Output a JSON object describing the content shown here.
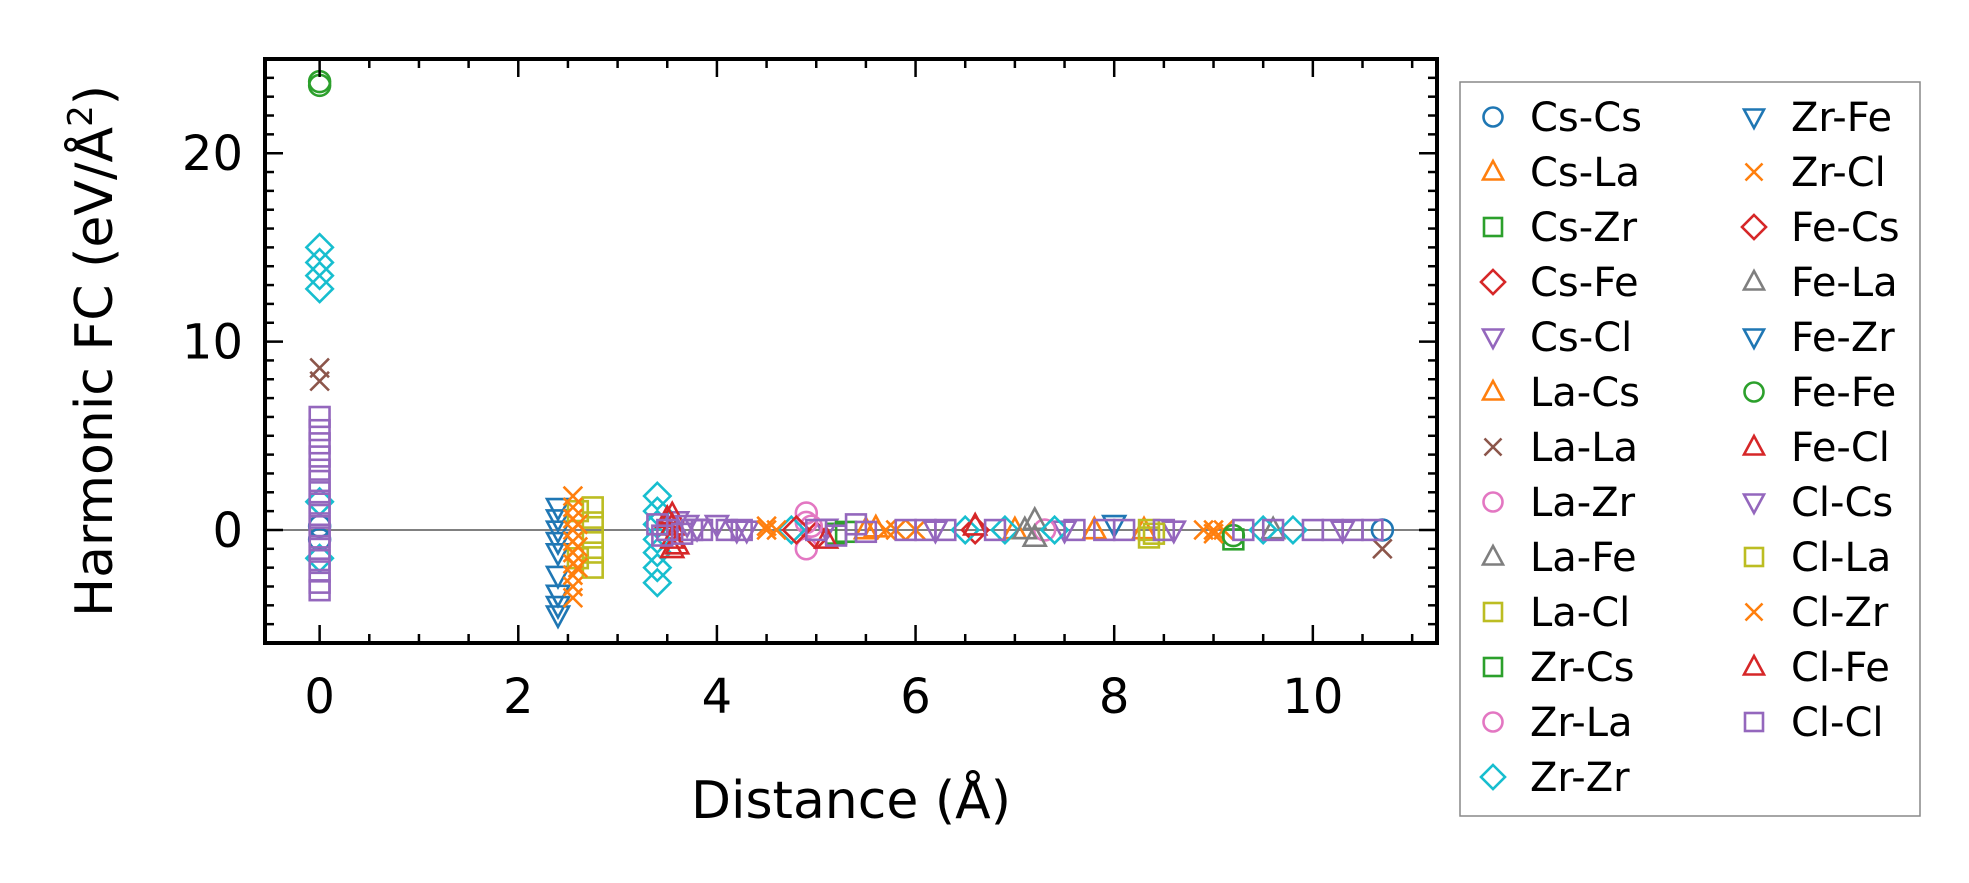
{
  "chart_data": {
    "type": "scatter",
    "title": "",
    "xlabel": "Distance (Å)",
    "ylabel": "Harmonic FC (eV/Å²)",
    "ylabel_base": "Harmonic FC (eV/Å",
    "ylabel_sup": "2",
    "ylabel_close": ")",
    "xlim": [
      -0.55,
      11.25
    ],
    "ylim": [
      -6,
      25
    ],
    "xticks": [
      0,
      2,
      4,
      6,
      8,
      10
    ],
    "xtick_labels": [
      "0",
      "2",
      "4",
      "6",
      "8",
      "10"
    ],
    "yticks": [
      0,
      10,
      20
    ],
    "ytick_labels": [
      "0",
      "10",
      "20"
    ],
    "zero_line": 0,
    "legend_position": "outside-right",
    "colors": {
      "blue": "#1f77b4",
      "orange": "#ff7f0e",
      "green": "#2ca02c",
      "red": "#d62728",
      "purple": "#9467bd",
      "brown": "#8c564b",
      "pink": "#e377c2",
      "gray": "#7f7f7f",
      "olive": "#bcbd22",
      "cyan": "#17becf"
    },
    "series": [
      {
        "name": "Cs-Cs",
        "marker": "circle",
        "color": "#1f77b4",
        "points": [
          [
            0,
            0.2
          ],
          [
            0,
            -0.5
          ],
          [
            10.7,
            0.0
          ]
        ]
      },
      {
        "name": "Cs-La",
        "marker": "triangle-up",
        "color": "#ff7f0e",
        "points": [
          [
            5.6,
            0.1
          ],
          [
            7.0,
            0.0
          ],
          [
            8.3,
            0.0
          ]
        ]
      },
      {
        "name": "Cs-Zr",
        "marker": "square",
        "color": "#2ca02c",
        "points": [
          [
            5.2,
            -0.2
          ],
          [
            9.2,
            -0.5
          ]
        ]
      },
      {
        "name": "Cs-Fe",
        "marker": "diamond",
        "color": "#d62728",
        "points": [
          [
            5.0,
            -0.3
          ],
          [
            6.6,
            0.0
          ]
        ]
      },
      {
        "name": "Cs-Cl",
        "marker": "triangle-down",
        "color": "#9467bd",
        "points": [
          [
            3.6,
            0.5
          ],
          [
            3.8,
            0.1
          ],
          [
            4.0,
            0.3
          ],
          [
            4.3,
            0.0
          ],
          [
            5.1,
            0.1
          ],
          [
            7.5,
            0.0
          ],
          [
            8.6,
            0.0
          ]
        ]
      },
      {
        "name": "La-Cs",
        "marker": "triangle-up",
        "color": "#ff7f0e",
        "points": [
          [
            5.5,
            0.0
          ],
          [
            7.8,
            0.0
          ]
        ]
      },
      {
        "name": "La-La",
        "marker": "x",
        "color": "#8c564b",
        "points": [
          [
            0,
            8.6
          ],
          [
            0,
            7.9
          ],
          [
            10.7,
            -1.0
          ]
        ]
      },
      {
        "name": "La-Zr",
        "marker": "circle",
        "color": "#e377c2",
        "points": [
          [
            4.9,
            0.9
          ],
          [
            4.9,
            -1.0
          ],
          [
            4.95,
            0.2
          ],
          [
            7.3,
            0.0
          ]
        ]
      },
      {
        "name": "La-Fe",
        "marker": "triangle-up",
        "color": "#7f7f7f",
        "points": [
          [
            7.2,
            0.5
          ],
          [
            7.2,
            -0.4
          ],
          [
            9.6,
            0.0
          ]
        ]
      },
      {
        "name": "La-Cl",
        "marker": "square",
        "color": "#bcbd22",
        "points": [
          [
            2.75,
            1.2
          ],
          [
            2.75,
            0.4
          ],
          [
            2.75,
            -0.4
          ],
          [
            2.75,
            -1.2
          ],
          [
            2.75,
            -2.0
          ],
          [
            8.35,
            0.0
          ],
          [
            8.35,
            -0.4
          ]
        ]
      },
      {
        "name": "Zr-Cs",
        "marker": "square",
        "color": "#2ca02c",
        "points": [
          [
            5.3,
            -0.1
          ]
        ]
      },
      {
        "name": "Zr-La",
        "marker": "circle",
        "color": "#e377c2",
        "points": [
          [
            4.9,
            0.4
          ]
        ]
      },
      {
        "name": "Zr-Zr",
        "marker": "diamond",
        "color": "#17becf",
        "points": [
          [
            0,
            15.0
          ],
          [
            0,
            14.2
          ],
          [
            0,
            13.5
          ],
          [
            0,
            12.8
          ],
          [
            0,
            1.5
          ],
          [
            0,
            -1.5
          ],
          [
            3.4,
            1.8
          ],
          [
            3.4,
            1.0
          ],
          [
            3.4,
            0.3
          ],
          [
            3.4,
            -0.5
          ],
          [
            3.4,
            -1.2
          ],
          [
            3.4,
            -2.0
          ],
          [
            3.4,
            -2.8
          ],
          [
            4.75,
            0.0
          ],
          [
            6.5,
            0.0
          ],
          [
            6.9,
            0.0
          ],
          [
            7.4,
            0.0
          ],
          [
            9.5,
            0.0
          ],
          [
            9.8,
            0.0
          ]
        ]
      },
      {
        "name": "Zr-Fe",
        "marker": "triangle-down",
        "color": "#1f77b4",
        "points": [
          [
            8.0,
            0.3
          ]
        ]
      },
      {
        "name": "Zr-Cl",
        "marker": "x",
        "color": "#ff7f0e",
        "points": [
          [
            4.6,
            0.0
          ],
          [
            4.5,
            0.2
          ],
          [
            5.8,
            0.0
          ],
          [
            6.0,
            0.0
          ],
          [
            8.9,
            0.0
          ],
          [
            9.0,
            0.0
          ],
          [
            9.1,
            0.0
          ]
        ]
      },
      {
        "name": "Fe-Cs",
        "marker": "diamond",
        "color": "#d62728",
        "points": [
          [
            4.8,
            0.0
          ]
        ]
      },
      {
        "name": "Fe-La",
        "marker": "triangle-up",
        "color": "#7f7f7f",
        "points": [
          [
            7.1,
            0.0
          ]
        ]
      },
      {
        "name": "Fe-Zr",
        "marker": "triangle-down",
        "color": "#1f77b4",
        "points": [
          [
            2.4,
            1.2
          ],
          [
            2.4,
            0.6
          ],
          [
            2.4,
            0.0
          ],
          [
            2.4,
            -0.6
          ],
          [
            2.4,
            -1.2
          ],
          [
            2.4,
            -2.4
          ],
          [
            2.4,
            -3.4
          ],
          [
            2.4,
            -4.0
          ],
          [
            2.4,
            -4.5
          ]
        ]
      },
      {
        "name": "Fe-Fe",
        "marker": "circle",
        "color": "#2ca02c",
        "points": [
          [
            0,
            23.8
          ],
          [
            0,
            23.6
          ],
          [
            9.2,
            -0.3
          ]
        ]
      },
      {
        "name": "Fe-Cl",
        "marker": "triangle-up",
        "color": "#d62728",
        "points": [
          [
            3.55,
            0.8
          ],
          [
            3.55,
            0.2
          ],
          [
            3.55,
            -0.5
          ],
          [
            3.55,
            -1.0
          ],
          [
            6.6,
            0.2
          ]
        ]
      },
      {
        "name": "Cl-Cs",
        "marker": "triangle-down",
        "color": "#9467bd",
        "points": [
          [
            3.7,
            0.3
          ],
          [
            4.2,
            0.0
          ],
          [
            6.2,
            0.0
          ],
          [
            10.3,
            0.0
          ]
        ]
      },
      {
        "name": "Cl-La",
        "marker": "square",
        "color": "#bcbd22",
        "points": [
          [
            2.6,
            1.0
          ],
          [
            2.6,
            -1.5
          ],
          [
            8.4,
            -0.2
          ]
        ]
      },
      {
        "name": "Cl-Zr",
        "marker": "x",
        "color": "#ff7f0e",
        "points": [
          [
            2.55,
            1.8
          ],
          [
            2.55,
            1.2
          ],
          [
            2.55,
            0.6
          ],
          [
            2.55,
            0.0
          ],
          [
            2.55,
            -0.6
          ],
          [
            2.55,
            -1.2
          ],
          [
            2.55,
            -1.8
          ],
          [
            2.55,
            -2.4
          ],
          [
            2.55,
            -3.0
          ],
          [
            2.55,
            -3.6
          ],
          [
            2.6,
            0.3
          ],
          [
            2.6,
            -0.9
          ],
          [
            2.6,
            -2.0
          ],
          [
            4.5,
            0.0
          ],
          [
            5.7,
            0.0
          ],
          [
            9.0,
            -0.2
          ]
        ]
      },
      {
        "name": "Cl-Fe",
        "marker": "triangle-up",
        "color": "#d62728",
        "points": [
          [
            3.5,
            0.6
          ],
          [
            3.6,
            -0.8
          ],
          [
            5.1,
            -0.5
          ]
        ]
      },
      {
        "name": "Cl-Cl",
        "marker": "square",
        "color": "#9467bd",
        "points": [
          [
            0,
            6.0
          ],
          [
            0,
            5.3
          ],
          [
            0,
            4.6
          ],
          [
            0,
            3.9
          ],
          [
            0,
            3.2
          ],
          [
            0,
            2.6
          ],
          [
            0,
            2.0
          ],
          [
            0,
            1.4
          ],
          [
            0,
            0.8
          ],
          [
            0,
            0.2
          ],
          [
            0,
            -0.4
          ],
          [
            0,
            -1.0
          ],
          [
            0,
            -1.6
          ],
          [
            0,
            -2.2
          ],
          [
            0,
            -2.8
          ],
          [
            0,
            -3.2
          ],
          [
            3.4,
            0.3
          ],
          [
            3.45,
            -0.3
          ],
          [
            3.5,
            0.0
          ],
          [
            3.65,
            -0.2
          ],
          [
            3.75,
            0.0
          ],
          [
            3.85,
            0.0
          ],
          [
            4.1,
            0.0
          ],
          [
            4.25,
            0.0
          ],
          [
            5.0,
            0.0
          ],
          [
            5.2,
            -0.3
          ],
          [
            5.4,
            0.3
          ],
          [
            5.5,
            -0.1
          ],
          [
            5.9,
            0.0
          ],
          [
            6.1,
            0.0
          ],
          [
            6.3,
            0.0
          ],
          [
            6.8,
            0.0
          ],
          [
            7.6,
            0.0
          ],
          [
            7.9,
            0.0
          ],
          [
            8.1,
            0.0
          ],
          [
            8.5,
            0.0
          ],
          [
            9.3,
            0.0
          ],
          [
            9.6,
            0.0
          ],
          [
            10.0,
            0.0
          ],
          [
            10.2,
            0.0
          ],
          [
            10.4,
            0.0
          ],
          [
            10.6,
            0.0
          ]
        ]
      }
    ]
  }
}
